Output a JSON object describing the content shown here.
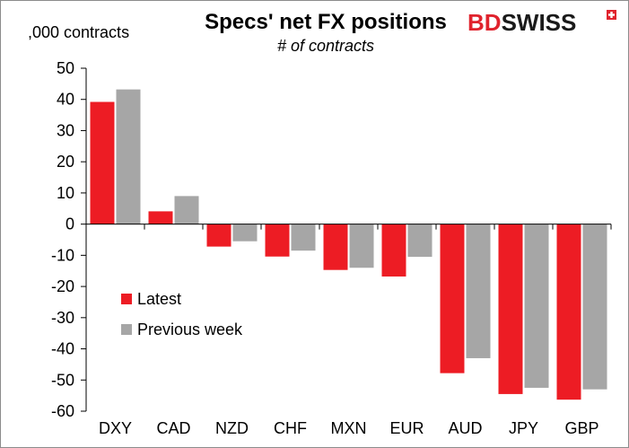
{
  "brand": {
    "name": "BDSWISS",
    "bd_part": "BD",
    "swiss_part": "SWISS",
    "color": "#e0232d"
  },
  "chart_data": {
    "type": "bar",
    "title": "Specs' net FX positions",
    "subtitle": "# of contracts",
    "ylabel": ",000 contracts",
    "xlabel": "",
    "ylim": [
      -60,
      50
    ],
    "yticks": [
      50,
      40,
      30,
      20,
      10,
      0,
      -10,
      -20,
      -30,
      -40,
      -50,
      -60
    ],
    "grid": false,
    "legend_position": "left-center",
    "categories": [
      "DXY",
      "CAD",
      "NZD",
      "CHF",
      "MXN",
      "EUR",
      "AUD",
      "JPY",
      "GBP"
    ],
    "series": [
      {
        "name": "Latest",
        "color": "#ed1c24",
        "values": [
          39.2,
          4.1,
          -7.2,
          -10.4,
          -14.7,
          -16.8,
          -47.8,
          -54.5,
          -56.3
        ]
      },
      {
        "name": "Previous week",
        "color": "#a6a6a6",
        "values": [
          43.2,
          9.0,
          -5.5,
          -8.5,
          -14.0,
          -10.5,
          -43.0,
          -52.5,
          -53.0
        ]
      }
    ]
  }
}
